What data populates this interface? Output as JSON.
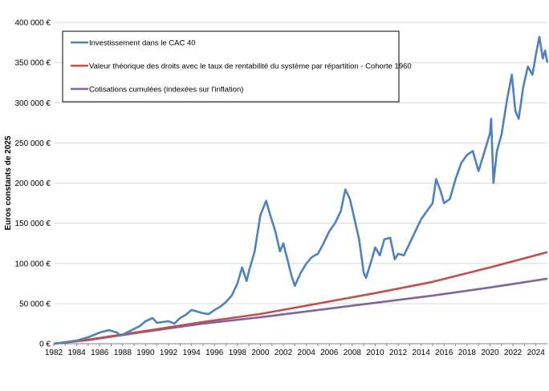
{
  "chart_data": {
    "type": "line",
    "title": "",
    "xlabel": "",
    "ylabel": "Euros constants de 2025",
    "xlim": [
      1982,
      2025
    ],
    "ylim": [
      0,
      400000
    ],
    "grid": true,
    "legend_position": "top-left",
    "x_ticks": [
      1982,
      1984,
      1986,
      1988,
      1990,
      1992,
      1994,
      1996,
      1998,
      2000,
      2002,
      2004,
      2006,
      2008,
      2010,
      2012,
      2014,
      2016,
      2018,
      2020,
      2022,
      2024
    ],
    "x_tick_labels": [
      "1982",
      "1984",
      "1986",
      "1988",
      "1990",
      "1992",
      "1994",
      "1996",
      "1998",
      "2000",
      "2002",
      "2004",
      "2006",
      "2008",
      "2010",
      "2012",
      "2014",
      "2016",
      "2018",
      "2020",
      "2022",
      "2024"
    ],
    "y_ticks": [
      0,
      50000,
      100000,
      150000,
      200000,
      250000,
      300000,
      350000,
      400000
    ],
    "y_tick_labels": [
      "0 €",
      "50 000 €",
      "100 000 €",
      "150 000 €",
      "200 000 €",
      "250 000 €",
      "300 000 €",
      "350 000 €",
      "400 000 €"
    ],
    "series": [
      {
        "name": "Investissement dans le CAC 40",
        "color": "#4f81bd",
        "points": [
          [
            1982,
            0
          ],
          [
            1983,
            2000
          ],
          [
            1984,
            4000
          ],
          [
            1985,
            8000
          ],
          [
            1986,
            14000
          ],
          [
            1986.8,
            17000
          ],
          [
            1987.5,
            14000
          ],
          [
            1987.8,
            10000
          ],
          [
            1988.5,
            15000
          ],
          [
            1989.5,
            22000
          ],
          [
            1990,
            28000
          ],
          [
            1990.6,
            32000
          ],
          [
            1991,
            26000
          ],
          [
            1992,
            28000
          ],
          [
            1992.5,
            25000
          ],
          [
            1993,
            32000
          ],
          [
            1993.5,
            36000
          ],
          [
            1994,
            42000
          ],
          [
            1994.5,
            40000
          ],
          [
            1995,
            38000
          ],
          [
            1995.5,
            37000
          ],
          [
            1996,
            42000
          ],
          [
            1996.5,
            46000
          ],
          [
            1997,
            52000
          ],
          [
            1997.5,
            60000
          ],
          [
            1998,
            75000
          ],
          [
            1998.4,
            95000
          ],
          [
            1998.8,
            78000
          ],
          [
            1999,
            90000
          ],
          [
            1999.5,
            115000
          ],
          [
            2000,
            160000
          ],
          [
            2000.5,
            178000
          ],
          [
            2000.9,
            158000
          ],
          [
            2001.3,
            140000
          ],
          [
            2001.7,
            115000
          ],
          [
            2002,
            125000
          ],
          [
            2002.3,
            108000
          ],
          [
            2002.7,
            85000
          ],
          [
            2003,
            72000
          ],
          [
            2003.5,
            88000
          ],
          [
            2004,
            100000
          ],
          [
            2004.5,
            108000
          ],
          [
            2005,
            112000
          ],
          [
            2005.5,
            125000
          ],
          [
            2006,
            140000
          ],
          [
            2006.5,
            150000
          ],
          [
            2007,
            165000
          ],
          [
            2007.4,
            192000
          ],
          [
            2007.8,
            180000
          ],
          [
            2008.2,
            155000
          ],
          [
            2008.6,
            130000
          ],
          [
            2009,
            88000
          ],
          [
            2009.2,
            82000
          ],
          [
            2009.6,
            100000
          ],
          [
            2010,
            120000
          ],
          [
            2010.4,
            110000
          ],
          [
            2010.8,
            130000
          ],
          [
            2011.3,
            132000
          ],
          [
            2011.7,
            105000
          ],
          [
            2012,
            112000
          ],
          [
            2012.5,
            110000
          ],
          [
            2013,
            125000
          ],
          [
            2013.5,
            140000
          ],
          [
            2014,
            155000
          ],
          [
            2014.5,
            165000
          ],
          [
            2015,
            175000
          ],
          [
            2015.3,
            205000
          ],
          [
            2015.7,
            190000
          ],
          [
            2016,
            175000
          ],
          [
            2016.5,
            180000
          ],
          [
            2017,
            205000
          ],
          [
            2017.5,
            225000
          ],
          [
            2018,
            235000
          ],
          [
            2018.5,
            240000
          ],
          [
            2019,
            215000
          ],
          [
            2019.5,
            238000
          ],
          [
            2020,
            262000
          ],
          [
            2020.1,
            280000
          ],
          [
            2020.3,
            200000
          ],
          [
            2020.6,
            240000
          ],
          [
            2021,
            260000
          ],
          [
            2021.5,
            305000
          ],
          [
            2021.9,
            335000
          ],
          [
            2022.2,
            290000
          ],
          [
            2022.5,
            280000
          ],
          [
            2022.9,
            320000
          ],
          [
            2023.3,
            345000
          ],
          [
            2023.7,
            335000
          ],
          [
            2024,
            360000
          ],
          [
            2024.3,
            382000
          ],
          [
            2024.6,
            355000
          ],
          [
            2024.8,
            365000
          ],
          [
            2025,
            350000
          ]
        ]
      },
      {
        "name": "Valeur théorique des droits avec le taux de rentabilité du système par répartition - Cohorte 1960",
        "color": "#c0504d",
        "points": [
          [
            1982,
            0
          ],
          [
            1985,
            5000
          ],
          [
            1990,
            16000
          ],
          [
            1995,
            27000
          ],
          [
            2000,
            37000
          ],
          [
            2005,
            50000
          ],
          [
            2010,
            63000
          ],
          [
            2015,
            77000
          ],
          [
            2020,
            95000
          ],
          [
            2025,
            114000
          ]
        ]
      },
      {
        "name": "Cotisations cumulées (indexées sur l'inflation)",
        "color": "#8064a2",
        "points": [
          [
            1982,
            0
          ],
          [
            1985,
            4500
          ],
          [
            1990,
            15000
          ],
          [
            1995,
            25000
          ],
          [
            2000,
            33000
          ],
          [
            2005,
            42000
          ],
          [
            2010,
            51000
          ],
          [
            2015,
            60000
          ],
          [
            2020,
            70000
          ],
          [
            2025,
            81000
          ]
        ]
      }
    ]
  }
}
